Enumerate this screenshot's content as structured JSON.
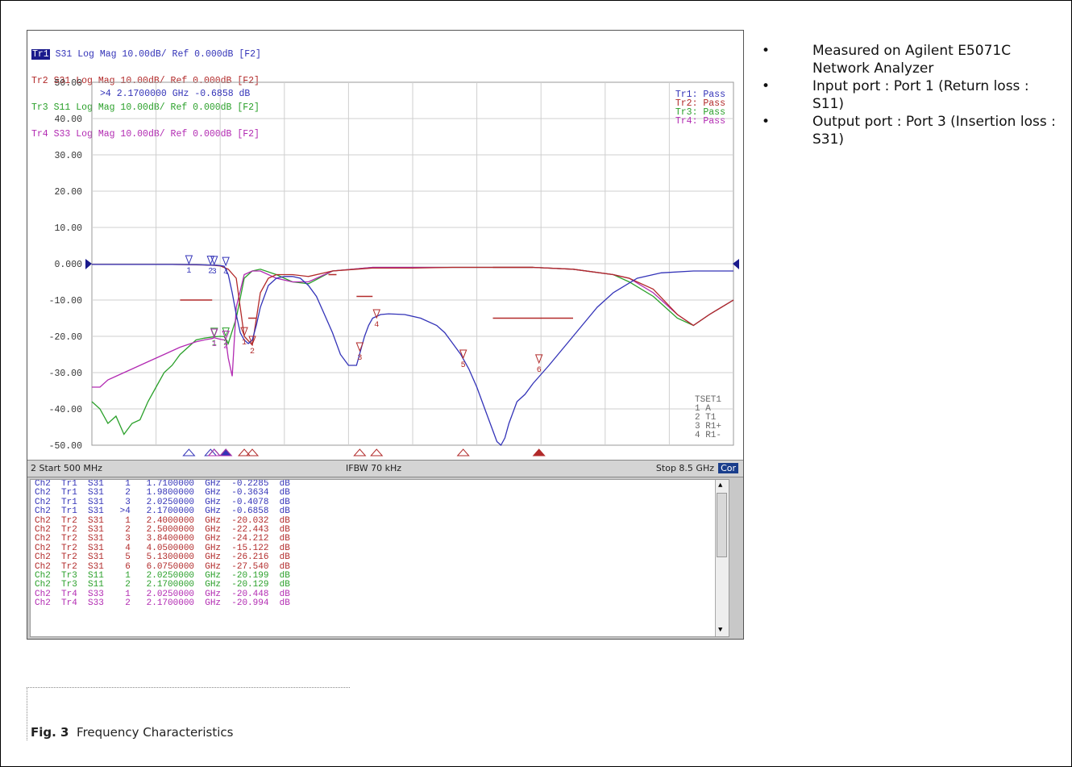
{
  "trace_header": [
    {
      "prefix": "Tr1",
      "selected": true,
      "text": " S31 Log Mag 10.00dB/ Ref 0.000dB [F2]",
      "color": "#3333b8"
    },
    {
      "prefix": "Tr2",
      "selected": false,
      "text": " S31 Log Mag 10.00dB/ Ref 0.000dB [F2]",
      "color": "#b22a2a"
    },
    {
      "prefix": "Tr3",
      "selected": false,
      "text": " S11 Log Mag 10.00dB/ Ref 0.000dB [F2]",
      "color": "#2aa02a"
    },
    {
      "prefix": "Tr4",
      "selected": false,
      "text": " S33 Log Mag 10.00dB/ Ref 0.000dB [F2]",
      "color": "#b22ab2"
    }
  ],
  "active_marker_readout": ">4   2.1700000 GHz -0.6858 dB",
  "pass_status": [
    "Tr1: Pass",
    "Tr2: Pass",
    "Tr3: Pass",
    "Tr4: Pass"
  ],
  "tset_labels": [
    "TSET1",
    "1 A",
    "2 T1",
    "3 R1+",
    "4 R1-"
  ],
  "status_bar": {
    "left": "2  Start 500 MHz",
    "center": "IFBW 70 kHz",
    "right": "Stop 8.5 GHz",
    "badge": "Cor"
  },
  "marker_table": [
    "Ch2  Tr1  S31    1   1.7100000  GHz  -0.2285  dB",
    "Ch2  Tr1  S31    2   1.9800000  GHz  -0.3634  dB",
    "Ch2  Tr1  S31    3   2.0250000  GHz  -0.4078  dB",
    "Ch2  Tr1  S31   >4   2.1700000  GHz  -0.6858  dB",
    "Ch2  Tr2  S31    1   2.4000000  GHz  -20.032  dB",
    "Ch2  Tr2  S31    2   2.5000000  GHz  -22.443  dB",
    "Ch2  Tr2  S31    3   3.8400000  GHz  -24.212  dB",
    "Ch2  Tr2  S31    4   4.0500000  GHz  -15.122  dB",
    "Ch2  Tr2  S31    5   5.1300000  GHz  -26.216  dB",
    "Ch2  Tr2  S31    6   6.0750000  GHz  -27.540  dB",
    "Ch2  Tr3  S11    1   2.0250000  GHz  -20.199  dB",
    "Ch2  Tr3  S11    2   2.1700000  GHz  -20.129  dB",
    "Ch2  Tr4  S33    1   2.0250000  GHz  -20.448  dB",
    "Ch2  Tr4  S33    2   2.1700000  GHz  -20.994  dB"
  ],
  "marker_table_colors": [
    "#3333b8",
    "#3333b8",
    "#3333b8",
    "#3333b8",
    "#b22a2a",
    "#b22a2a",
    "#b22a2a",
    "#b22a2a",
    "#b22a2a",
    "#b22a2a",
    "#2aa02a",
    "#2aa02a",
    "#b22ab2",
    "#b22ab2"
  ],
  "notes": [
    "Measured on Agilent E5071C Network Analyzer",
    "Input port : Port 1 (Return loss : S11)",
    "Output port : Port 3 (Insertion loss : S31)"
  ],
  "bullet_glyph": "•",
  "caption": {
    "label": "Fig. 3",
    "text": "Frequency Characteristics"
  },
  "chart_data": {
    "type": "line",
    "x_range_ghz": [
      0.5,
      8.5
    ],
    "ylim": [
      -50,
      50
    ],
    "y_ticks": [
      "50.00",
      "40.00",
      "30.00",
      "20.00",
      "10.00",
      "0.000",
      "-10.00",
      "-20.00",
      "-30.00",
      "-40.00",
      "-50.00"
    ],
    "grid": true,
    "series": [
      {
        "name": "Tr1",
        "color": "#3333b8",
        "x": [
          0.5,
          1.0,
          1.5,
          1.8,
          1.95,
          2.05,
          2.1,
          2.15,
          2.2,
          2.25,
          2.3,
          2.35,
          2.4,
          2.45,
          2.5,
          2.55,
          2.6,
          2.7,
          2.8,
          2.9,
          3.0,
          3.1,
          3.2,
          3.3,
          3.4,
          3.5,
          3.6,
          3.7,
          3.8,
          3.85,
          3.9,
          3.95,
          4.0,
          4.1,
          4.2,
          4.4,
          4.6,
          4.8,
          4.9,
          5.0,
          5.1,
          5.2,
          5.3,
          5.4,
          5.5,
          5.55,
          5.6,
          5.65,
          5.7,
          5.8,
          5.9,
          6.0,
          6.2,
          6.5,
          6.8,
          7.0,
          7.3,
          7.6,
          8.0,
          8.5
        ],
        "y": [
          -0.2,
          -0.2,
          -0.2,
          -0.25,
          -0.35,
          -0.4,
          -0.5,
          -0.7,
          -3,
          -8,
          -14,
          -19,
          -21,
          -22,
          -21,
          -17,
          -12,
          -6,
          -4,
          -3.5,
          -3.5,
          -4,
          -6,
          -9,
          -14,
          -19,
          -25,
          -28,
          -28,
          -24,
          -20,
          -17,
          -15,
          -14,
          -13.8,
          -14,
          -15,
          -17,
          -19,
          -22,
          -25,
          -29,
          -34,
          -40,
          -46,
          -49,
          -50,
          -48,
          -44,
          -38,
          -36,
          -33,
          -28,
          -20,
          -12,
          -8,
          -4,
          -2.5,
          -2,
          -2
        ]
      },
      {
        "name": "Tr2",
        "color": "#b22a2a",
        "x": [
          0.5,
          1.0,
          1.5,
          1.8,
          2.0,
          2.1,
          2.2,
          2.3,
          2.4,
          2.5,
          2.6,
          2.7,
          2.8,
          3.0,
          3.2,
          3.5,
          3.8,
          4.0,
          4.5,
          5.0,
          5.5,
          6.0,
          6.5,
          7.0,
          7.2,
          7.5,
          7.8,
          8.0,
          8.2,
          8.5
        ],
        "y": [
          -0.2,
          -0.2,
          -0.2,
          -0.3,
          -0.4,
          -0.6,
          -1.5,
          -4,
          -20,
          -22.4,
          -8,
          -4,
          -3,
          -3,
          -3.5,
          -2,
          -1.5,
          -1.2,
          -1.2,
          -1,
          -1,
          -1,
          -1.5,
          -3,
          -4,
          -7,
          -14,
          -17,
          -14,
          -10
        ]
      },
      {
        "name": "Tr3",
        "color": "#2aa02a",
        "x": [
          0.5,
          0.6,
          0.7,
          0.8,
          0.9,
          1.0,
          1.1,
          1.2,
          1.3,
          1.4,
          1.5,
          1.6,
          1.7,
          1.8,
          1.9,
          2.0,
          2.05,
          2.1,
          2.15,
          2.2,
          2.3,
          2.4,
          2.5,
          2.6,
          2.8,
          3.0,
          3.2,
          3.5,
          4.0,
          4.5,
          5.0,
          5.5,
          6.0,
          6.5,
          7.0,
          7.2,
          7.5,
          7.8,
          8.0,
          8.2,
          8.5
        ],
        "y": [
          -38,
          -40,
          -44,
          -42,
          -47,
          -44,
          -43,
          -38,
          -34,
          -30,
          -28,
          -25,
          -23,
          -21,
          -20.5,
          -20.2,
          -20.1,
          -20,
          -20.1,
          -22,
          -15,
          -4,
          -2,
          -1.5,
          -3,
          -5,
          -5.5,
          -2,
          -1,
          -1,
          -1,
          -1,
          -1,
          -1.5,
          -3,
          -5,
          -9,
          -15,
          -17,
          -14,
          -10
        ]
      },
      {
        "name": "Tr4",
        "color": "#b22ab2",
        "x": [
          0.5,
          0.6,
          0.7,
          0.8,
          0.9,
          1.0,
          1.2,
          1.4,
          1.6,
          1.8,
          1.9,
          2.0,
          2.025,
          2.1,
          2.15,
          2.17,
          2.2,
          2.25,
          2.3,
          2.4,
          2.5,
          2.6,
          2.8,
          3.0,
          3.2,
          3.5,
          4.0,
          4.5,
          5.0,
          5.5,
          6.0,
          6.5,
          7.0,
          7.2,
          7.5,
          7.8,
          8.0,
          8.2,
          8.5
        ],
        "y": [
          -34,
          -34,
          -32,
          -31,
          -30,
          -29,
          -27,
          -25,
          -23,
          -21.5,
          -21,
          -20.6,
          -20.4,
          -20.8,
          -21,
          -21,
          -26,
          -31,
          -12,
          -3,
          -2,
          -2,
          -4,
          -5,
          -5,
          -2,
          -1,
          -1,
          -1,
          -1,
          -1,
          -1.5,
          -3,
          -4,
          -8,
          -14,
          -17,
          -14,
          -10
        ]
      }
    ],
    "limit_lines": [
      {
        "x": [
          1.6,
          2.0
        ],
        "y": -10
      },
      {
        "x": [
          2.45,
          2.55
        ],
        "y": -15
      },
      {
        "x": [
          3.8,
          4.0
        ],
        "y": -9
      },
      {
        "x": [
          3.45,
          3.55
        ],
        "y": -3
      },
      {
        "x": [
          5.5,
          6.0
        ],
        "y": -1
      },
      {
        "x": [
          5.5,
          6.5
        ],
        "y": -15
      }
    ],
    "markers": [
      {
        "trace": "Tr1",
        "label": "1",
        "x": 1.71,
        "y": -0.2285
      },
      {
        "trace": "Tr1",
        "label": "2",
        "x": 1.98,
        "y": -0.3634
      },
      {
        "trace": "Tr1",
        "label": "3",
        "x": 2.025,
        "y": -0.4078
      },
      {
        "trace": "Tr1",
        "label": "4",
        "x": 2.17,
        "y": -0.6858
      },
      {
        "trace": "Tr2",
        "label": "1",
        "x": 2.4,
        "y": -20.032
      },
      {
        "trace": "Tr2",
        "label": "2",
        "x": 2.5,
        "y": -22.443
      },
      {
        "trace": "Tr2",
        "label": "3",
        "x": 3.84,
        "y": -24.212
      },
      {
        "trace": "Tr2",
        "label": "4",
        "x": 4.05,
        "y": -15.122
      },
      {
        "trace": "Tr2",
        "label": "5",
        "x": 5.13,
        "y": -26.216
      },
      {
        "trace": "Tr2",
        "label": "6",
        "x": 6.075,
        "y": -27.54
      },
      {
        "trace": "Tr3",
        "label": "1",
        "x": 2.025,
        "y": -20.199
      },
      {
        "trace": "Tr3",
        "label": "2",
        "x": 2.17,
        "y": -20.129
      },
      {
        "trace": "Tr4",
        "label": "1",
        "x": 2.025,
        "y": -20.448
      },
      {
        "trace": "Tr4",
        "label": "2",
        "x": 2.17,
        "y": -20.994
      }
    ]
  }
}
